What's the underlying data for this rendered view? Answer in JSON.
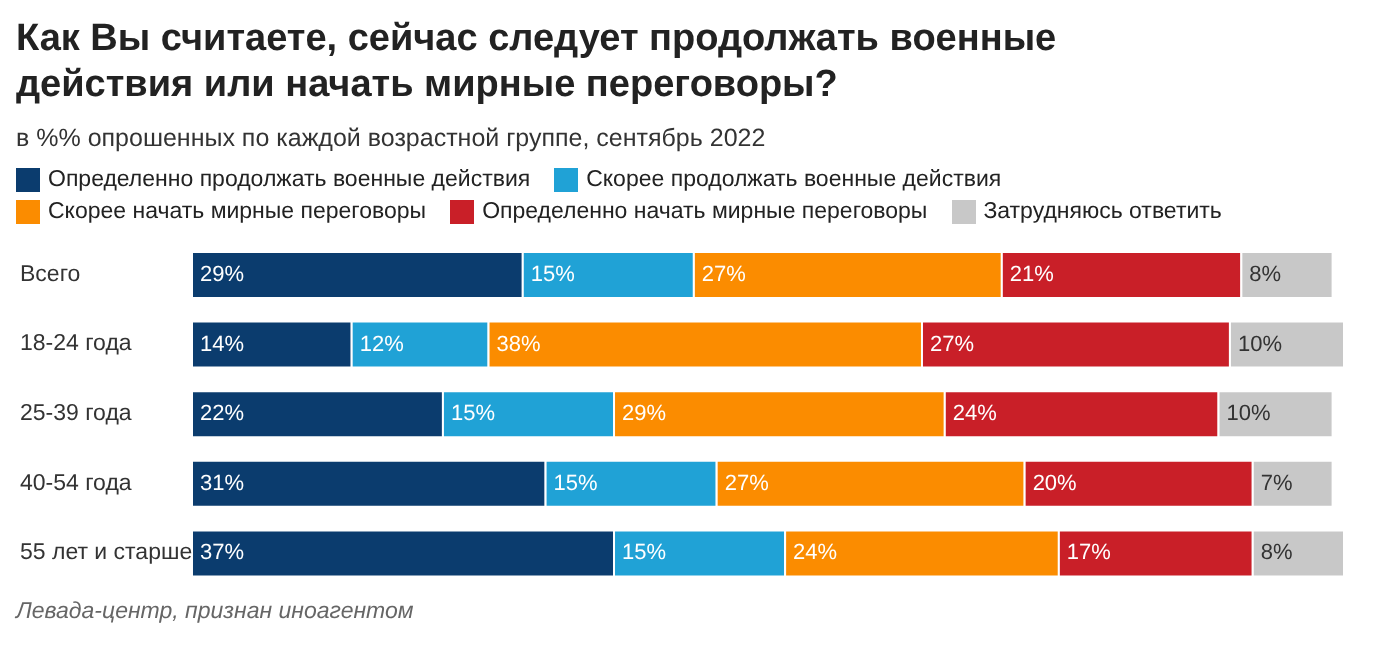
{
  "chart_data": {
    "type": "bar",
    "orientation": "horizontal",
    "stacked": true,
    "title": "Как Вы считаете, сейчас следует продолжать военные действия или начать мирные переговоры?",
    "subtitle": "в %% опрошенных по каждой возрастной группе, сентябрь 2022",
    "categories": [
      "Всего",
      "18-24 года",
      "25-39 года",
      "40-54 года",
      "55 лет и старше"
    ],
    "series": [
      {
        "name": "Определенно продолжать военные действия",
        "color": "#0b3c6e",
        "values": [
          29,
          14,
          22,
          31,
          37
        ],
        "value_labels": [
          "29%",
          "14%",
          "22%",
          "31%",
          "37%"
        ]
      },
      {
        "name": "Скорее продолжать военные действия",
        "color": "#20a2d6",
        "values": [
          15,
          12,
          15,
          15,
          15
        ],
        "value_labels": [
          "15%",
          "12%",
          "15%",
          "15%",
          "15%"
        ]
      },
      {
        "name": "Скорее начать мирные переговоры",
        "color": "#fb8c00",
        "values": [
          27,
          38,
          29,
          27,
          24
        ],
        "value_labels": [
          "27%",
          "38%",
          "29%",
          "27%",
          "24%"
        ]
      },
      {
        "name": "Определенно начать мирные переговоры",
        "color": "#c91f28",
        "values": [
          21,
          27,
          24,
          20,
          17
        ],
        "value_labels": [
          "21%",
          "27%",
          "24%",
          "20%",
          "17%"
        ]
      },
      {
        "name": "Затрудняюсь ответить",
        "color": "#c8c8c8",
        "values": [
          8,
          10,
          10,
          7,
          8
        ],
        "value_labels": [
          "8%",
          "10%",
          "10%",
          "7%",
          "8%"
        ]
      }
    ],
    "legend": "top",
    "tick_labels": "y",
    "annotations": [
      "Левада-центр, признан иноагентом"
    ]
  }
}
